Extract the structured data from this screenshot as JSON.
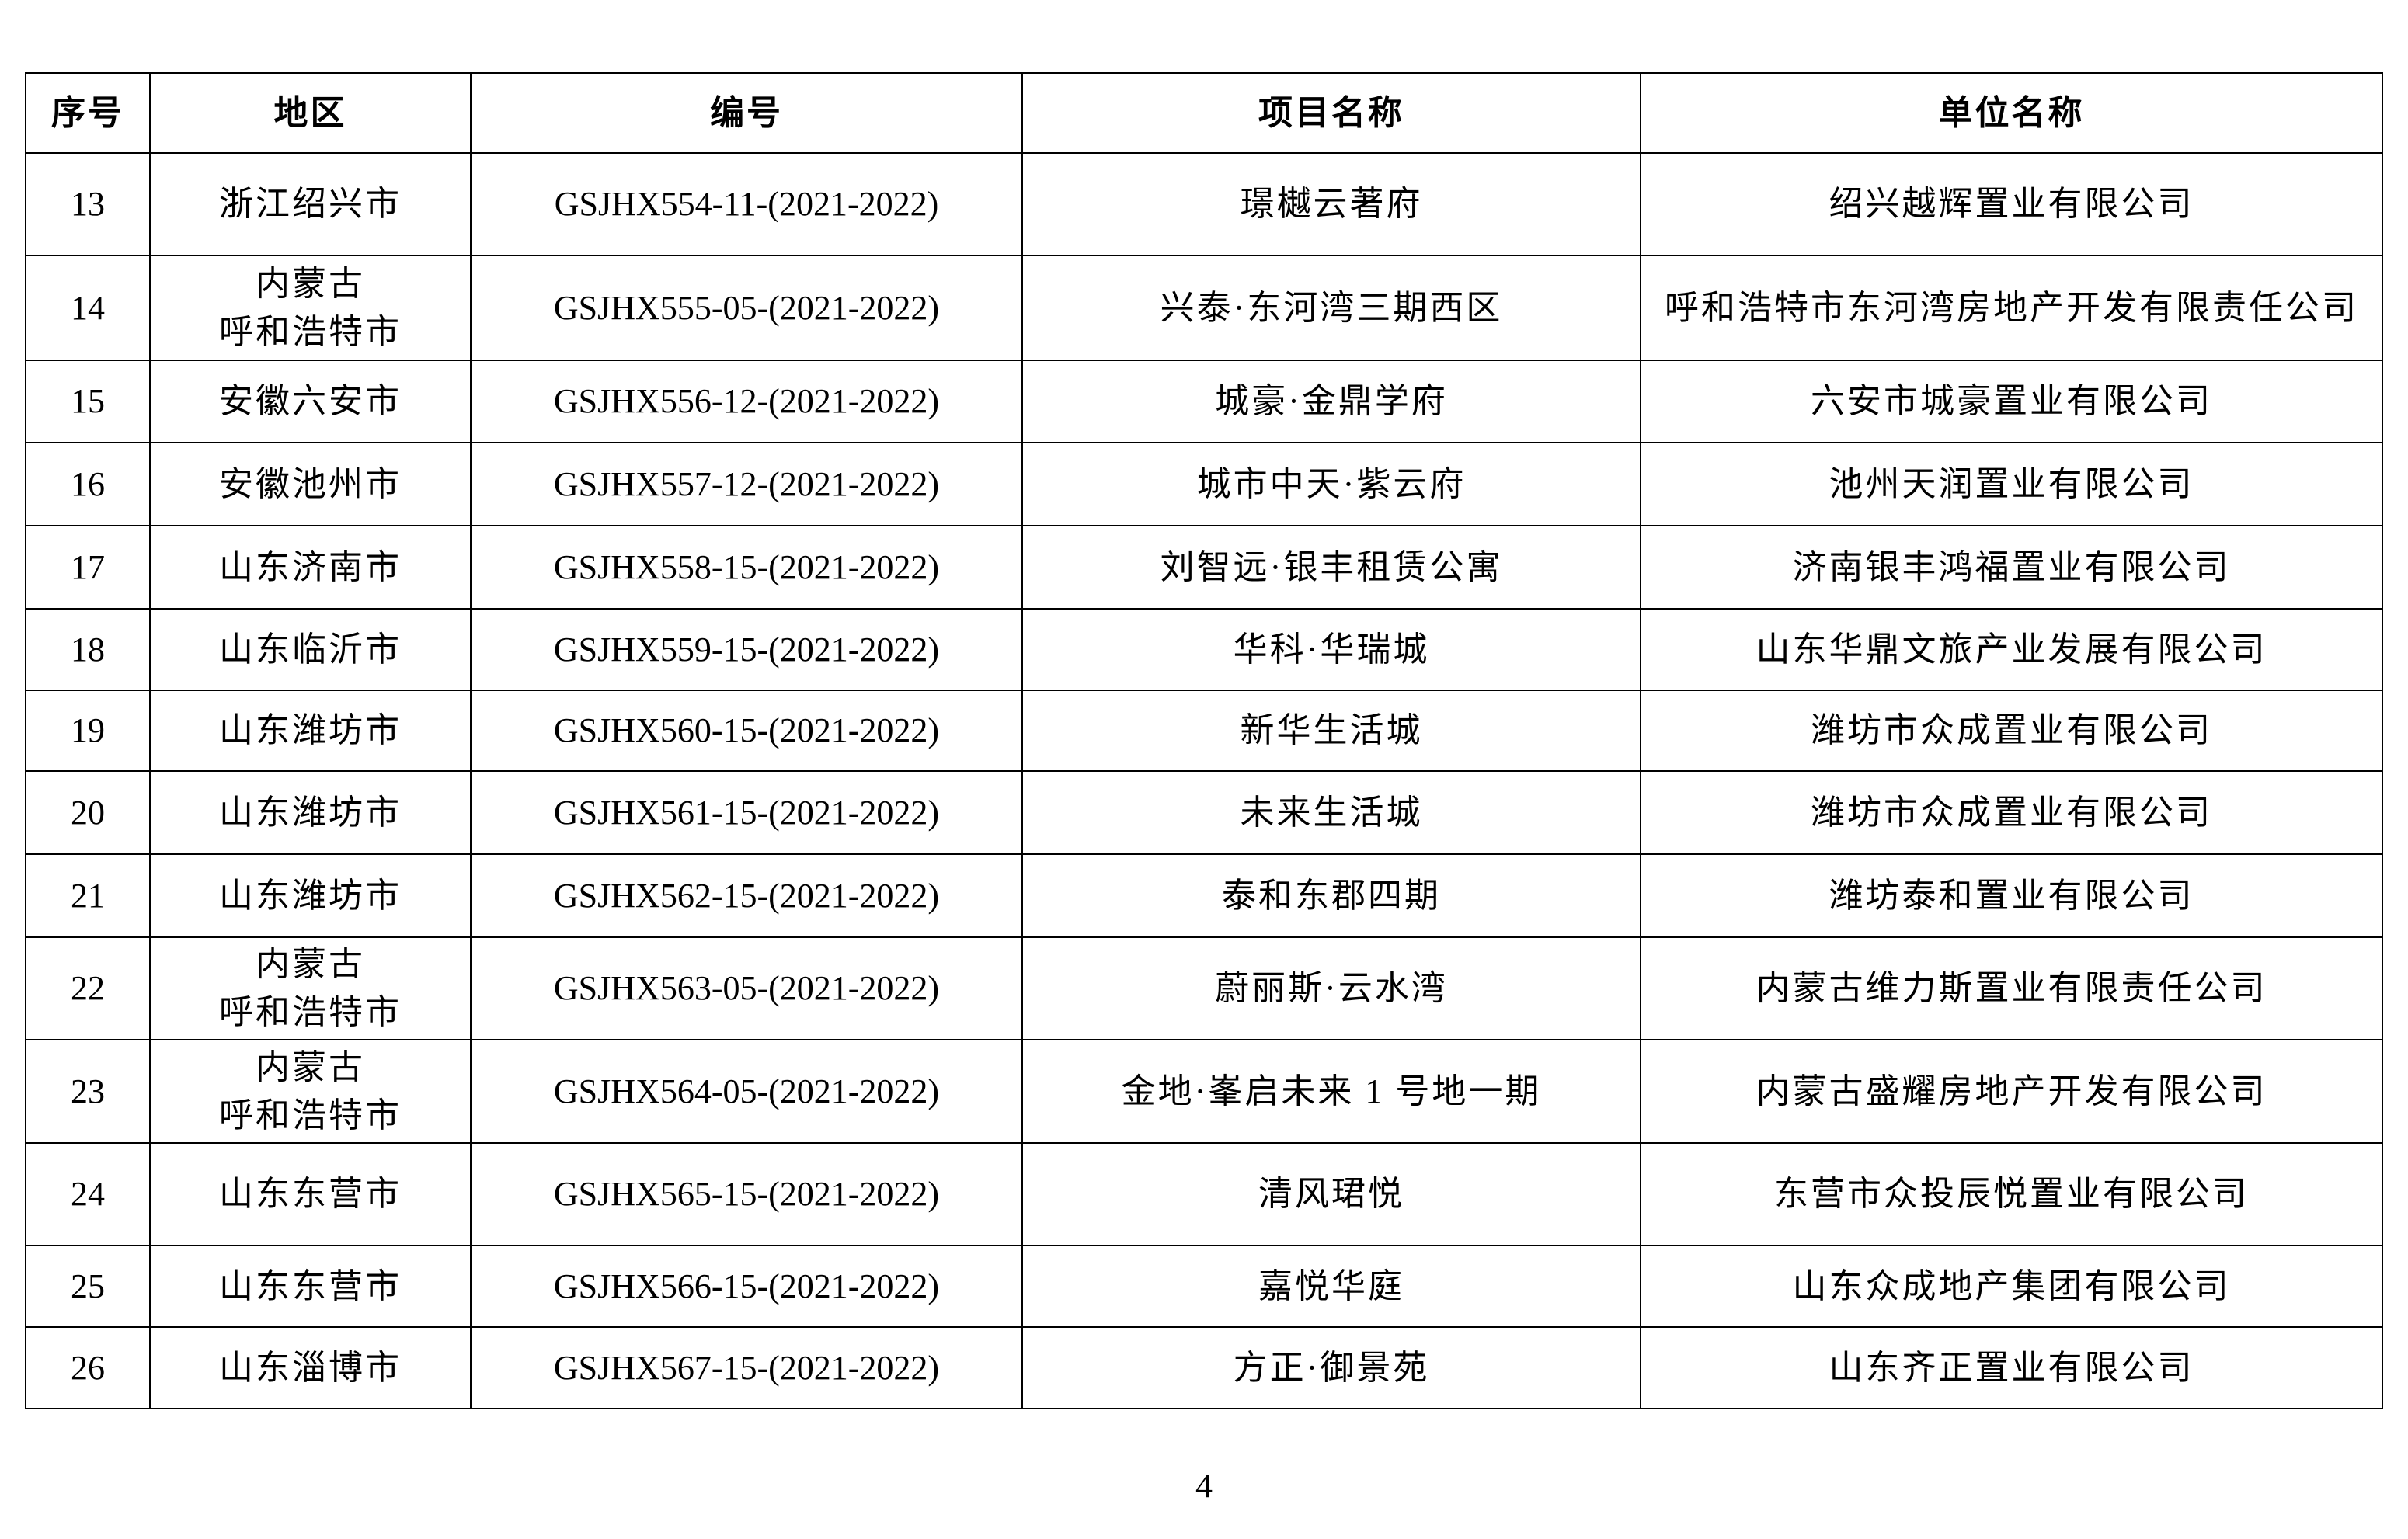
{
  "headers": [
    "序号",
    "地区",
    "编号",
    "项目名称",
    "单位名称"
  ],
  "rows": [
    {
      "no": "13",
      "region": "浙江绍兴市",
      "code": "GSJHX554-11-(2021-2022)",
      "project": "璟樾云著府",
      "company": "绍兴越辉置业有限公司"
    },
    {
      "no": "14",
      "region": "内蒙古\n呼和浩特市",
      "code": "GSJHX555-05-(2021-2022)",
      "project": "兴泰·东河湾三期西区",
      "company": "呼和浩特市东河湾房地产开发有限责任公司"
    },
    {
      "no": "15",
      "region": "安徽六安市",
      "code": "GSJHX556-12-(2021-2022)",
      "project": "城豪·金鼎学府",
      "company": "六安市城豪置业有限公司"
    },
    {
      "no": "16",
      "region": "安徽池州市",
      "code": "GSJHX557-12-(2021-2022)",
      "project": "城市中天·紫云府",
      "company": "池州天润置业有限公司"
    },
    {
      "no": "17",
      "region": "山东济南市",
      "code": "GSJHX558-15-(2021-2022)",
      "project": "刘智远·银丰租赁公寓",
      "company": "济南银丰鸿福置业有限公司"
    },
    {
      "no": "18",
      "region": "山东临沂市",
      "code": "GSJHX559-15-(2021-2022)",
      "project": "华科·华瑞城",
      "company": "山东华鼎文旅产业发展有限公司"
    },
    {
      "no": "19",
      "region": "山东潍坊市",
      "code": "GSJHX560-15-(2021-2022)",
      "project": "新华生活城",
      "company": "潍坊市众成置业有限公司"
    },
    {
      "no": "20",
      "region": "山东潍坊市",
      "code": "GSJHX561-15-(2021-2022)",
      "project": "未来生活城",
      "company": "潍坊市众成置业有限公司"
    },
    {
      "no": "21",
      "region": "山东潍坊市",
      "code": "GSJHX562-15-(2021-2022)",
      "project": "泰和东郡四期",
      "company": "潍坊泰和置业有限公司"
    },
    {
      "no": "22",
      "region": "内蒙古\n呼和浩特市",
      "code": "GSJHX563-05-(2021-2022)",
      "project": "蔚丽斯·云水湾",
      "company": "内蒙古维力斯置业有限责任公司"
    },
    {
      "no": "23",
      "region": "内蒙古\n呼和浩特市",
      "code": "GSJHX564-05-(2021-2022)",
      "project": "金地·峯启未来 1 号地一期",
      "company": "内蒙古盛耀房地产开发有限公司"
    },
    {
      "no": "24",
      "region": "山东东营市",
      "code": "GSJHX565-15-(2021-2022)",
      "project": "清风珺悦",
      "company": "东营市众投辰悦置业有限公司"
    },
    {
      "no": "25",
      "region": "山东东营市",
      "code": "GSJHX566-15-(2021-2022)",
      "project": "嘉悦华庭",
      "company": "山东众成地产集团有限公司"
    },
    {
      "no": "26",
      "region": "山东淄博市",
      "code": "GSJHX567-15-(2021-2022)",
      "project": "方正·御景苑",
      "company": "山东齐正置业有限公司"
    }
  ],
  "page_number": "4"
}
